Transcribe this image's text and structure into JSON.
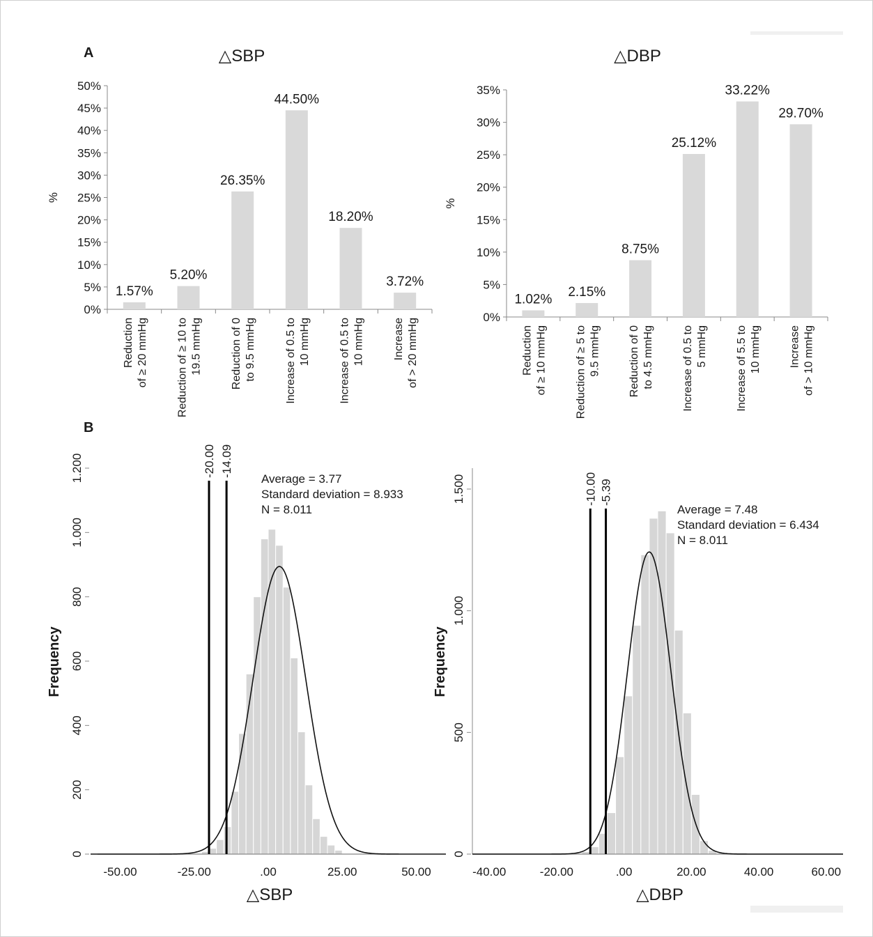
{
  "panels": {
    "a_label": "A",
    "b_label": "B"
  },
  "chart_data": [
    {
      "type": "bar",
      "title": "△SBP",
      "ylabel": "%",
      "ylim": [
        0,
        50
      ],
      "yticks": [
        "0%",
        "5%",
        "10%",
        "15%",
        "20%",
        "25%",
        "30%",
        "35%",
        "40%",
        "45%",
        "50%"
      ],
      "categories": [
        [
          "Reduction",
          "of ≥ 20 mmHg"
        ],
        [
          "Reduction of ≥ 10 to",
          "19.5 mmHg"
        ],
        [
          "Reduction of 0",
          "to 9.5 mmHg"
        ],
        [
          "Increase of 0.5 to",
          "10 mmHg"
        ],
        [
          "Increase of 0.5 to",
          "10 mmHg"
        ],
        [
          "Increase",
          "of > 20 mmHg"
        ]
      ],
      "values": [
        1.57,
        5.2,
        26.35,
        44.5,
        18.2,
        3.72
      ],
      "data_labels": [
        "1.57%",
        "5.20%",
        "26.35%",
        "44.50%",
        "18.20%",
        "3.72%"
      ],
      "bar_color": "#d9d9d9"
    },
    {
      "type": "bar",
      "title": "△DBP",
      "ylabel": "%",
      "ylim": [
        0,
        35
      ],
      "yticks": [
        "0%",
        "5%",
        "10%",
        "15%",
        "20%",
        "25%",
        "30%",
        "35%"
      ],
      "categories": [
        [
          "Reduction",
          "of ≥ 10 mmHg"
        ],
        [
          "Reduction of ≥ 5 to",
          "9.5 mmHg"
        ],
        [
          "Reduction of 0",
          "to 4.5 mmHg"
        ],
        [
          "Increase of 0.5 to",
          "5 mmHg"
        ],
        [
          "Increase of 5.5 to",
          "10 mmHg"
        ],
        [
          "Increase",
          "of > 10 mmHg"
        ]
      ],
      "values": [
        1.02,
        2.15,
        8.75,
        25.12,
        33.22,
        29.7
      ],
      "data_labels": [
        "1.02%",
        "2.15%",
        "8.75%",
        "25.12%",
        "33.22%",
        "29.70%"
      ],
      "bar_color": "#d9d9d9"
    },
    {
      "type": "histogram",
      "xlabel": "△SBP",
      "ylabel": "Frequency",
      "xlim": [
        -60,
        60
      ],
      "ylim": [
        0,
        1200
      ],
      "xticks": [
        -50,
        -25,
        0,
        25,
        50
      ],
      "xtick_labels": [
        "-50.00",
        "-25.00",
        ".00",
        "25.00",
        "50.00"
      ],
      "yticks": [
        0,
        200,
        400,
        600,
        800,
        1000,
        1200
      ],
      "ytick_labels": [
        "0",
        "200",
        "400",
        "600",
        "800",
        "1.000",
        "1.200"
      ],
      "bin_width": 2.5,
      "bin_start": -22.5,
      "counts": [
        8,
        18,
        45,
        85,
        195,
        375,
        560,
        800,
        980,
        1010,
        960,
        830,
        610,
        380,
        215,
        110,
        55,
        28,
        12
      ],
      "normal_curve": {
        "mean": 3.77,
        "sd": 8.933,
        "n": 8011
      },
      "vlines": [
        {
          "x": -20.0,
          "label": "-20.00"
        },
        {
          "x": -14.09,
          "label": "-14.09"
        }
      ],
      "annotation": [
        "Average = 3.77",
        "Standard deviation = 8.933",
        "N = 8.011"
      ],
      "bar_color": "#d6d6d6"
    },
    {
      "type": "histogram",
      "xlabel": "△DBP",
      "ylabel": "Frequency",
      "xlim": [
        -45,
        65
      ],
      "ylim": [
        0,
        1650
      ],
      "xticks": [
        -40,
        -20,
        0,
        20,
        40,
        60
      ],
      "xtick_labels": [
        "-40.00",
        "-20.00",
        ".00",
        "20.00",
        "40.00",
        "60.00"
      ],
      "yticks": [
        0,
        500,
        1000,
        1500
      ],
      "ytick_labels": [
        "0",
        "500",
        "1.000",
        "1.500"
      ],
      "bin_width": 2.5,
      "bin_start": -12.5,
      "counts": [
        10,
        30,
        85,
        170,
        400,
        650,
        940,
        1230,
        1380,
        1410,
        1320,
        920,
        580,
        245,
        55,
        15
      ],
      "normal_curve": {
        "mean": 7.48,
        "sd": 6.434,
        "n": 8011
      },
      "vlines": [
        {
          "x": -10.0,
          "label": "-10.00"
        },
        {
          "x": -5.39,
          "label": "-5.39"
        }
      ],
      "annotation": [
        "Average = 7.48",
        "Standard deviation = 6.434",
        "N = 8.011"
      ],
      "bar_color": "#d6d6d6"
    }
  ]
}
